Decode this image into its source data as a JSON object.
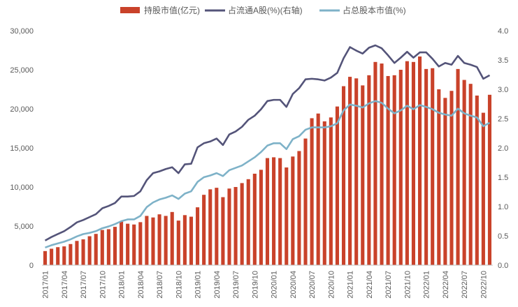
{
  "chart_data": {
    "type": "bar+line",
    "legend_position": "top",
    "grid": false,
    "legend": [
      {
        "label": "持股市值(亿元)",
        "color": "#C9422A",
        "kind": "bar"
      },
      {
        "label": "占流通A股(%)(右轴)",
        "color": "#545479",
        "kind": "line"
      },
      {
        "label": "占总股本市值(%)",
        "color": "#7EB2C8",
        "kind": "line"
      }
    ],
    "colors": {
      "bar": "#C9422A",
      "line_float": "#545479",
      "line_total": "#7EB2C8",
      "axis": "#BFBFBF",
      "text": "#595959"
    },
    "y_left": {
      "min": 0,
      "max": 30000,
      "ticks": [
        "0",
        "5,000",
        "10,000",
        "15,000",
        "20,000",
        "25,000",
        "30,000"
      ]
    },
    "y_right": {
      "min": 0,
      "max": 4.0,
      "ticks": [
        "0.0",
        "0.5",
        "1.0",
        "1.5",
        "2.0",
        "2.5",
        "3.0",
        "3.5",
        "4.0"
      ]
    },
    "x_tick_labels": [
      "2017/01",
      "2017/04",
      "2017/07",
      "2017/10",
      "2018/01",
      "2018/04",
      "2018/07",
      "2018/10",
      "2019/01",
      "2019/04",
      "2019/07",
      "2019/10",
      "2020/01",
      "2020/04",
      "2020/07",
      "2020/10",
      "2021/01",
      "2021/04",
      "2021/07",
      "2021/10",
      "2022/01",
      "2022/04",
      "2022/07",
      "2022/10"
    ],
    "months": [
      "2017/01",
      "2017/02",
      "2017/03",
      "2017/04",
      "2017/05",
      "2017/06",
      "2017/07",
      "2017/08",
      "2017/09",
      "2017/10",
      "2017/11",
      "2017/12",
      "2018/01",
      "2018/02",
      "2018/03",
      "2018/04",
      "2018/05",
      "2018/06",
      "2018/07",
      "2018/08",
      "2018/09",
      "2018/10",
      "2018/11",
      "2018/12",
      "2019/01",
      "2019/02",
      "2019/03",
      "2019/04",
      "2019/05",
      "2019/06",
      "2019/07",
      "2019/08",
      "2019/09",
      "2019/10",
      "2019/11",
      "2019/12",
      "2020/01",
      "2020/02",
      "2020/03",
      "2020/04",
      "2020/05",
      "2020/06",
      "2020/07",
      "2020/08",
      "2020/09",
      "2020/10",
      "2020/11",
      "2020/12",
      "2021/01",
      "2021/02",
      "2021/03",
      "2021/04",
      "2021/05",
      "2021/06",
      "2021/07",
      "2021/08",
      "2021/09",
      "2021/10",
      "2021/11",
      "2021/12",
      "2022/01",
      "2022/02",
      "2022/03",
      "2022/04",
      "2022/05",
      "2022/06",
      "2022/07",
      "2022/08",
      "2022/09",
      "2022/10",
      "2022/11"
    ],
    "series": [
      {
        "name": "持股市值(亿元)",
        "axis": "left",
        "kind": "bar",
        "values": [
          1800,
          2100,
          2300,
          2400,
          2700,
          3100,
          3300,
          3700,
          4000,
          4500,
          4600,
          4900,
          5600,
          5300,
          5200,
          5500,
          6300,
          6100,
          6500,
          6300,
          6800,
          5700,
          6400,
          6200,
          7400,
          9000,
          9700,
          9900,
          8700,
          9800,
          10000,
          10500,
          11000,
          11700,
          12200,
          13700,
          13800,
          13700,
          12500,
          13900,
          14600,
          16200,
          18800,
          19400,
          18400,
          18900,
          20300,
          22900,
          24100,
          23900,
          23000,
          24300,
          26000,
          25800,
          24200,
          24300,
          25000,
          26100,
          26000,
          26700,
          25100,
          25200,
          22500,
          21400,
          22300,
          25100,
          23700,
          23200,
          21700,
          19500,
          21800
        ]
      },
      {
        "name": "占流通A股(%)(右轴)",
        "axis": "right",
        "kind": "line",
        "values": [
          0.42,
          0.48,
          0.53,
          0.58,
          0.65,
          0.73,
          0.77,
          0.82,
          0.87,
          0.97,
          1.01,
          1.06,
          1.17,
          1.17,
          1.18,
          1.26,
          1.45,
          1.57,
          1.6,
          1.64,
          1.67,
          1.57,
          1.72,
          1.73,
          2.01,
          2.08,
          2.11,
          2.16,
          2.05,
          2.23,
          2.28,
          2.36,
          2.48,
          2.55,
          2.66,
          2.8,
          2.82,
          2.82,
          2.7,
          2.92,
          3.02,
          3.17,
          3.18,
          3.17,
          3.15,
          3.2,
          3.28,
          3.53,
          3.72,
          3.66,
          3.61,
          3.71,
          3.75,
          3.7,
          3.58,
          3.45,
          3.54,
          3.64,
          3.54,
          3.63,
          3.63,
          3.52,
          3.39,
          3.45,
          3.42,
          3.57,
          3.45,
          3.42,
          3.38,
          3.18,
          3.24
        ]
      },
      {
        "name": "占总股本市值(%)",
        "axis": "right",
        "kind": "line",
        "values": [
          0.3,
          0.34,
          0.37,
          0.4,
          0.44,
          0.49,
          0.53,
          0.55,
          0.58,
          0.63,
          0.66,
          0.7,
          0.75,
          0.78,
          0.78,
          0.84,
          0.99,
          1.07,
          1.12,
          1.15,
          1.19,
          1.13,
          1.22,
          1.26,
          1.42,
          1.5,
          1.53,
          1.57,
          1.52,
          1.62,
          1.66,
          1.7,
          1.77,
          1.84,
          1.93,
          2.04,
          2.08,
          2.08,
          1.98,
          2.15,
          2.2,
          2.31,
          2.35,
          2.35,
          2.35,
          2.37,
          2.42,
          2.64,
          2.74,
          2.72,
          2.69,
          2.76,
          2.8,
          2.77,
          2.67,
          2.59,
          2.64,
          2.72,
          2.66,
          2.73,
          2.7,
          2.66,
          2.6,
          2.57,
          2.55,
          2.67,
          2.59,
          2.55,
          2.52,
          2.37,
          2.43
        ]
      }
    ]
  }
}
